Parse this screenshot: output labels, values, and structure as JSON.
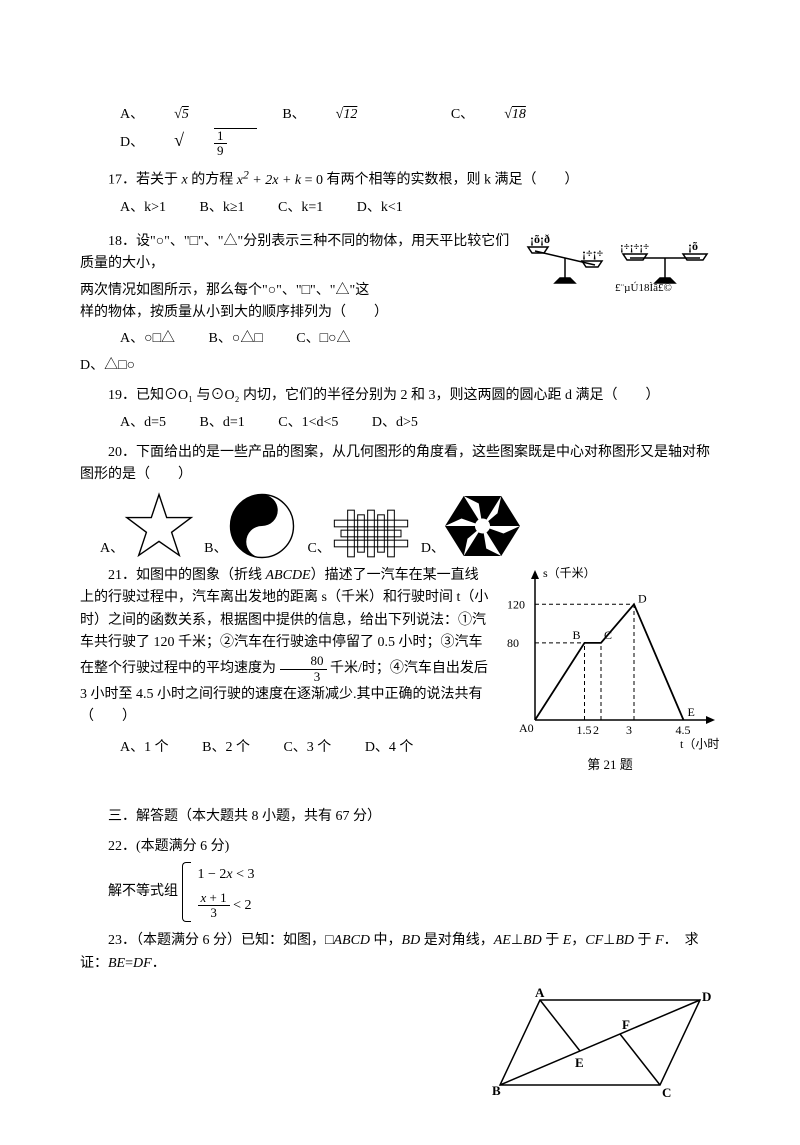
{
  "q16": {
    "optA_label": "A、",
    "optA_val": "5",
    "optB_label": "B、",
    "optB_val": "12",
    "optC_label": "C、",
    "optC_val": "18",
    "optD_label": "D、",
    "optD_frac_num": "1",
    "optD_frac_den": "9"
  },
  "q17": {
    "text_a": "17．若关于 ",
    "text_b": " 的方程 ",
    "eq_left": "x",
    "eq_sup": "2",
    "eq_mid": " + 2",
    "eq_x2": "x",
    "eq_plus": " + ",
    "eq_k": "k",
    "eq_eqz": " = 0",
    "text_c": " 有两个相等的实数根，则 k 满足（　　）",
    "optA": "A、k>1",
    "optB": "B、k≥1",
    "optC": "C、k=1",
    "optD": "D、k<1"
  },
  "q18": {
    "line1": "18．设\"○\"、\"□\"、\"△\"分别表示三种不同的物体，用天平比较它们质量的大小，",
    "line2": "两次情况如图所示，那么每个\"○\"、\"□\"、\"△\"这",
    "line3": "样的物体，按质量从小到大的顺序排列为（　　）",
    "optA": "A、○□△",
    "optB": "B、○△□",
    "optC": "C、□○△",
    "optD": "D、△□○",
    "fig_caption": "（第 18 题图）",
    "balance": {
      "left_pan_1": "¡õ¡ð",
      "right_pan_1": "¡÷¡÷",
      "left_pan_2": "¡õ¡õ¡õ",
      "right_pan_2": "¡õ",
      "marks": "¡õ"
    }
  },
  "q19": {
    "text": "19．已知⊙O₁ 与⊙O₂ 内切，它们的半径分别为 2 和 3，则这两圆的圆心距 d 满足（　　）",
    "optA": "A、d=5",
    "optB": "B、d=1",
    "optC": "C、1<d<5",
    "optD": "D、d>5"
  },
  "q20": {
    "text": "20．下面给出的是一些产品的图案，从几何图形的角度看，这些图案既是中心对称图形又是轴对称图形的是（　　）",
    "A": "A、",
    "B": "B、",
    "C": "C、",
    "D": "D、",
    "colors": {
      "black": "#000000",
      "white": "#ffffff"
    }
  },
  "q21": {
    "p1a": "21．如图中的图象（折线 ",
    "abcde": "ABCDE",
    "p1b": "）描述了一汽车在某一直线上的行驶过程中，汽车离出发地的距离 s（千米）和行驶时间 t（小时）之间的函数关系，根据图中提供的信息，给出下列说法：①汽车共行驶了 120 千米；②汽车在行驶途中停留了 0.5 小时；③汽车在整个行驶过程中的平均速度为",
    "frac_num": "80",
    "frac_den": "3",
    "p2": "千米/时；④汽车自出发后 3 小时至 4.5 小时之间行驶的速度在逐渐减少.其中正确的说法共有（　　）",
    "optA": "A、1 个",
    "optB": "B、2 个",
    "optC": "C、3 个",
    "optD": "D、4 个",
    "chart": {
      "y_label": "s（千米）",
      "x_label": "t（小时）",
      "y_ticks": [
        80,
        120
      ],
      "y_max": 140,
      "x_ticks": [
        1.5,
        2,
        3,
        4.5
      ],
      "x_max": 5,
      "origin": "A0",
      "points": {
        "B": [
          1.5,
          80
        ],
        "C": [
          2,
          80
        ],
        "D": [
          3,
          120
        ],
        "E": [
          4.5,
          0
        ]
      },
      "caption": "第 21 题",
      "axis_color": "#000000",
      "dash_color": "#000000"
    }
  },
  "section3": {
    "title": "三．解答题（本大题共 8 小题，共有 67 分）"
  },
  "q22": {
    "head": "22．(本题满分 6 分)",
    "stem": "解不等式组",
    "line1_a": "1 − 2",
    "line1_x": "x",
    "line1_b": " < 3",
    "line2_num_a": "x",
    "line2_num_b": " + 1",
    "line2_den": "3",
    "line2_tail": " < 2"
  },
  "q23": {
    "text_a": "23．（本题满分 6 分）已知：如图，□",
    "abcd": "ABCD",
    "text_b": " 中，",
    "bd": "BD",
    "text_c": " 是对角线，",
    "ae": "AE",
    "perp1": "⊥",
    "bd2": "BD",
    "text_d": " 于 ",
    "e": "E",
    "text_e": "，",
    "cf": "CF",
    "perp2": "⊥",
    "bd3": "BD",
    "text_f": " 于 ",
    "f": "F",
    "text_g": "．　求证：",
    "be": "BE",
    "eq": "=",
    "df": "DF",
    "period": "．",
    "labels": {
      "A": "A",
      "B": "B",
      "C": "C",
      "D": "D",
      "E": "E",
      "F": "F"
    },
    "color": "#000000"
  }
}
